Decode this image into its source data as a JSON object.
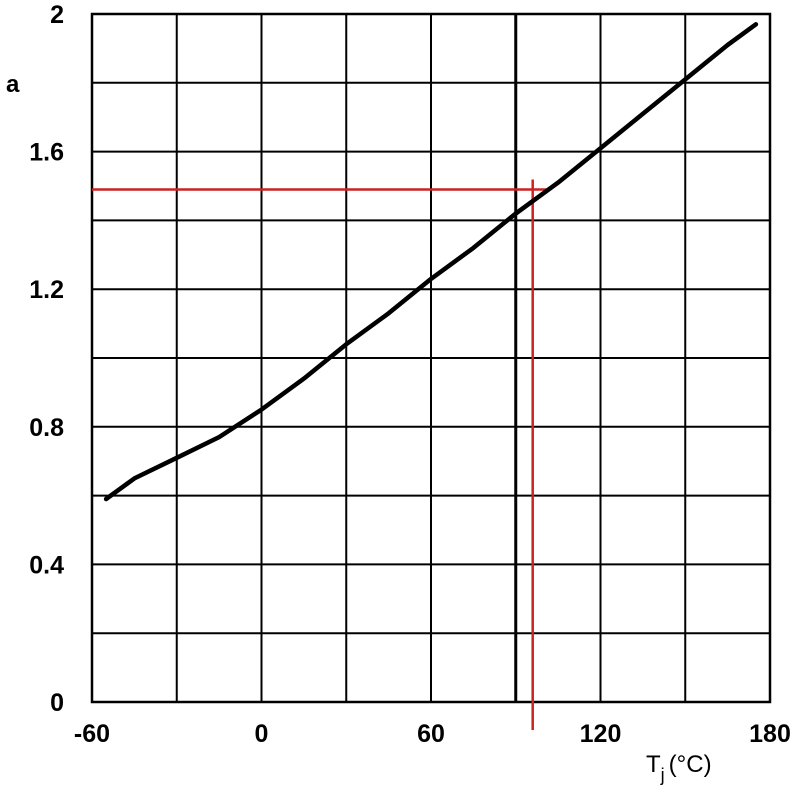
{
  "chart_data": {
    "type": "line",
    "title": "",
    "xlabel": {
      "main": "T",
      "subscript": "j",
      "unit": "(°C)"
    },
    "ylabel": "a",
    "xlim": [
      -60,
      180
    ],
    "ylim": [
      0,
      2
    ],
    "x_ticks": [
      -60,
      0,
      60,
      120,
      180
    ],
    "x_tick_labels": [
      "-60",
      "0",
      "60",
      "120",
      "180"
    ],
    "y_ticks": [
      0,
      0.4,
      0.8,
      1.2,
      1.6,
      2
    ],
    "y_tick_labels": [
      "0",
      "0.4",
      "0.8",
      "1.2",
      "1.6",
      "2"
    ],
    "grid": true,
    "x_grid_step": 30,
    "y_grid_step": 0.2,
    "series": [
      {
        "color": "#000000",
        "x": [
          -55,
          -45,
          -30,
          -15,
          0,
          15,
          30,
          45,
          60,
          75,
          90,
          105,
          120,
          135,
          150,
          165,
          175
        ],
        "y": [
          0.59,
          0.65,
          0.71,
          0.77,
          0.85,
          0.94,
          1.04,
          1.13,
          1.23,
          1.32,
          1.42,
          1.51,
          1.61,
          1.71,
          1.81,
          1.91,
          1.97
        ]
      }
    ],
    "annotations": {
      "vertical_black_line_x": 90,
      "red_marker": {
        "color": "#cc2222",
        "x": 96,
        "y": 1.49
      }
    }
  }
}
